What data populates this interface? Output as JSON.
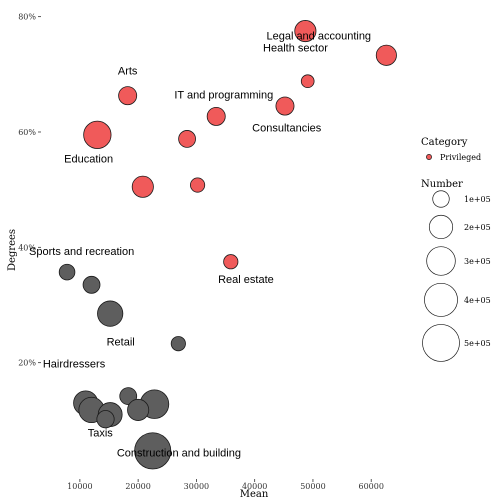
{
  "chart_data": {
    "type": "scatter",
    "title": "",
    "xlabel": "Mean",
    "ylabel": "Degrees",
    "xlim": [
      3500,
      67000
    ],
    "ylim": [
      0.0,
      0.815
    ],
    "x_ticks": [
      10000,
      20000,
      30000,
      40000,
      50000,
      60000
    ],
    "x_tick_labels": [
      "10000",
      "20000",
      "30000",
      "40000",
      "50000",
      "60000"
    ],
    "y_ticks": [
      0.2,
      0.4,
      0.6,
      0.8
    ],
    "y_tick_labels": [
      "20%",
      "40%",
      "60%",
      "80%"
    ],
    "grid": false,
    "legend_position": "right",
    "colors": {
      "Privileged": "#f05a5a",
      "Other": "#5e5e5e"
    },
    "points": [
      {
        "x": 48700,
        "y": 0.775,
        "size": 165000,
        "category": "Privileged"
      },
      {
        "x": 62600,
        "y": 0.733,
        "size": 150000,
        "category": "Privileged"
      },
      {
        "x": 49100,
        "y": 0.688,
        "size": 60000,
        "category": "Privileged"
      },
      {
        "x": 18200,
        "y": 0.663,
        "size": 120000,
        "category": "Privileged"
      },
      {
        "x": 45200,
        "y": 0.645,
        "size": 120000,
        "category": "Privileged"
      },
      {
        "x": 33400,
        "y": 0.627,
        "size": 120000,
        "category": "Privileged"
      },
      {
        "x": 13000,
        "y": 0.595,
        "size": 275000,
        "category": "Privileged"
      },
      {
        "x": 28400,
        "y": 0.588,
        "size": 105000,
        "category": "Privileged"
      },
      {
        "x": 20800,
        "y": 0.505,
        "size": 165000,
        "category": "Privileged"
      },
      {
        "x": 30200,
        "y": 0.508,
        "size": 75000,
        "category": "Privileged"
      },
      {
        "x": 35900,
        "y": 0.375,
        "size": 75000,
        "category": "Privileged"
      },
      {
        "x": 7800,
        "y": 0.357,
        "size": 90000,
        "category": "Other"
      },
      {
        "x": 12000,
        "y": 0.335,
        "size": 105000,
        "category": "Other"
      },
      {
        "x": 15200,
        "y": 0.285,
        "size": 235000,
        "category": "Other"
      },
      {
        "x": 26900,
        "y": 0.233,
        "size": 75000,
        "category": "Other"
      },
      {
        "x": 18300,
        "y": 0.142,
        "size": 105000,
        "category": "Other"
      },
      {
        "x": 11000,
        "y": 0.13,
        "size": 215000,
        "category": "Other"
      },
      {
        "x": 22800,
        "y": 0.128,
        "size": 300000,
        "category": "Other"
      },
      {
        "x": 12000,
        "y": 0.118,
        "size": 235000,
        "category": "Other"
      },
      {
        "x": 20000,
        "y": 0.118,
        "size": 165000,
        "category": "Other"
      },
      {
        "x": 15200,
        "y": 0.11,
        "size": 210000,
        "category": "Other"
      },
      {
        "x": 14400,
        "y": 0.102,
        "size": 110000,
        "category": "Other"
      },
      {
        "x": 22500,
        "y": 0.047,
        "size": 480000,
        "category": "Other"
      }
    ],
    "annotations": [
      {
        "text": "Legal and accounting",
        "x": 51000,
        "y": 0.76
      },
      {
        "text": "Health sector",
        "x": 47000,
        "y": 0.74
      },
      {
        "text": "Arts",
        "x": 18200,
        "y": 0.7
      },
      {
        "text": "IT and programming",
        "x": 34700,
        "y": 0.658
      },
      {
        "text": "Consultancies",
        "x": 45500,
        "y": 0.601
      },
      {
        "text": "Education",
        "x": 11500,
        "y": 0.547
      },
      {
        "text": "Sports and recreation",
        "x": 10300,
        "y": 0.387
      },
      {
        "text": "Real estate",
        "x": 38500,
        "y": 0.338
      },
      {
        "text": "Retail",
        "x": 17000,
        "y": 0.23
      },
      {
        "text": "Hairdressers",
        "x": 9000,
        "y": 0.192
      },
      {
        "text": "Taxis",
        "x": 13500,
        "y": 0.072
      },
      {
        "text": "Construction and building",
        "x": 27000,
        "y": 0.037
      }
    ],
    "legend": {
      "category_title": "Category",
      "category_entries": [
        {
          "label": "Privileged",
          "color": "#f05a5a"
        }
      ],
      "size_title": "Number",
      "size_entries": [
        {
          "label": "1e+05",
          "value": 100000
        },
        {
          "label": "2e+05",
          "value": 200000
        },
        {
          "label": "3e+05",
          "value": 300000
        },
        {
          "label": "4e+05",
          "value": 400000
        },
        {
          "label": "5e+05",
          "value": 500000
        }
      ]
    }
  }
}
